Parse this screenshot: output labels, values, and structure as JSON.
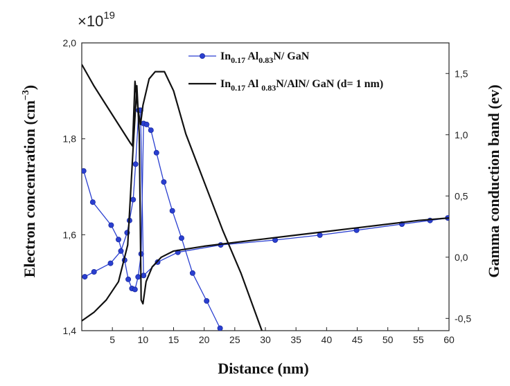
{
  "chart_data": {
    "type": "line",
    "multiplier": {
      "prefix": "×10",
      "exponent": "19"
    },
    "xlabel": "Distance (nm)",
    "ylabel_left": "Electron concentration",
    "ylabel_left_units": {
      "base": "(cm",
      "sup": "−3",
      "end": ")"
    },
    "ylabel_right": "Gamma conduction band (ev)",
    "xlim": [
      0,
      60
    ],
    "ylim_left": [
      1.4,
      2.0
    ],
    "ylim_right": [
      -0.6,
      1.75
    ],
    "x_ticks": [
      5,
      10,
      15,
      20,
      25,
      30,
      35,
      40,
      45,
      50,
      55,
      60
    ],
    "y_left_ticks": [
      {
        "value": 1.4,
        "label": "1,4"
      },
      {
        "value": 1.6,
        "label": "1,6"
      },
      {
        "value": 1.8,
        "label": "1,8"
      },
      {
        "value": 2.0,
        "label": "2,0"
      }
    ],
    "y_right_ticks": [
      {
        "value": -0.5,
        "label": "-0,5"
      },
      {
        "value": 0.0,
        "label": "0,0"
      },
      {
        "value": 0.5,
        "label": "0,5"
      },
      {
        "value": 1.0,
        "label": "1,0"
      },
      {
        "value": 1.5,
        "label": "1,5"
      }
    ],
    "legend": [
      {
        "main": "In",
        "sub1": "0.17",
        "mid": " Al",
        "sub2": "0.83",
        "tail": "N/ GaN",
        "color": "#2a3fd0",
        "marker": "circle"
      },
      {
        "main": "In",
        "sub1": "0.17",
        "mid": " Al ",
        "sub2": "0.83",
        "tail": "N/AlN/ GaN (d= 1 nm)",
        "color": "#111111",
        "marker": "none"
      }
    ],
    "series": [
      {
        "name": "In0.17Al0.83N/ GaN — electron concentration",
        "axis": "left",
        "color": "#2a3fd0",
        "marker": "circle",
        "x": [
          0.3,
          1.8,
          4.8,
          6.0,
          7.0,
          7.6,
          8.2,
          8.7,
          9.2,
          9.7,
          10.1,
          10.6,
          11.3,
          12.2,
          13.4,
          14.8,
          16.3,
          18.1,
          20.4,
          22.6
        ],
        "y": [
          1.733,
          1.668,
          1.62,
          1.59,
          1.547,
          1.507,
          1.488,
          1.486,
          1.512,
          1.56,
          1.832,
          1.83,
          1.818,
          1.771,
          1.71,
          1.65,
          1.593,
          1.52,
          1.462,
          1.405
        ]
      },
      {
        "name": "In0.17Al0.83N/ GaN — gamma conduction band",
        "axis": "right",
        "color": "#2a3fd0",
        "marker": "circle",
        "x": [
          0.5,
          2.0,
          4.7,
          6.4,
          7.4,
          7.8,
          8.4,
          8.8,
          9.3,
          9.6,
          10.1,
          12.4,
          15.7,
          22.7,
          31.6,
          38.9,
          44.9,
          52.3,
          56.9,
          59.8
        ],
        "y": [
          -0.16,
          -0.12,
          -0.05,
          0.05,
          0.2,
          0.3,
          0.47,
          0.76,
          1.2,
          1.2,
          -0.15,
          -0.04,
          0.04,
          0.1,
          0.14,
          0.18,
          0.22,
          0.27,
          0.3,
          0.32
        ]
      },
      {
        "name": "In0.17Al0.83N/AlN/ GaN (d= 1 nm) — electron concentration",
        "axis": "left",
        "color": "#111111",
        "marker": "none",
        "x": [
          0.0,
          2.0,
          4.0,
          6.0,
          8.0,
          8.3,
          8.7,
          9.2,
          9.6,
          10.0,
          11.0,
          12.0,
          13.5,
          15.0,
          17.0,
          20.0,
          23.0,
          26.0,
          28.0,
          30.0
        ],
        "y": [
          1.955,
          1.91,
          1.87,
          1.83,
          1.79,
          1.785,
          1.92,
          1.86,
          1.83,
          1.87,
          1.925,
          1.94,
          1.94,
          1.9,
          1.81,
          1.71,
          1.61,
          1.52,
          1.45,
          1.38
        ]
      },
      {
        "name": "In0.17Al0.83N/AlN/ GaN (d= 1 nm) — gamma conduction band",
        "axis": "right",
        "color": "#111111",
        "marker": "none",
        "x": [
          0.0,
          2.0,
          4.0,
          6.0,
          7.5,
          8.4,
          9.0,
          9.4,
          9.7,
          10.0,
          10.5,
          11.5,
          13.0,
          15.0,
          20.0,
          25.0,
          30.0,
          35.0,
          40.0,
          45.0,
          50.0,
          55.0,
          60.0
        ],
        "y": [
          -0.52,
          -0.45,
          -0.35,
          -0.2,
          0.1,
          0.9,
          1.4,
          1.0,
          -0.35,
          -0.38,
          -0.2,
          -0.08,
          0.0,
          0.05,
          0.09,
          0.12,
          0.15,
          0.18,
          0.21,
          0.24,
          0.27,
          0.3,
          0.32
        ]
      }
    ]
  }
}
